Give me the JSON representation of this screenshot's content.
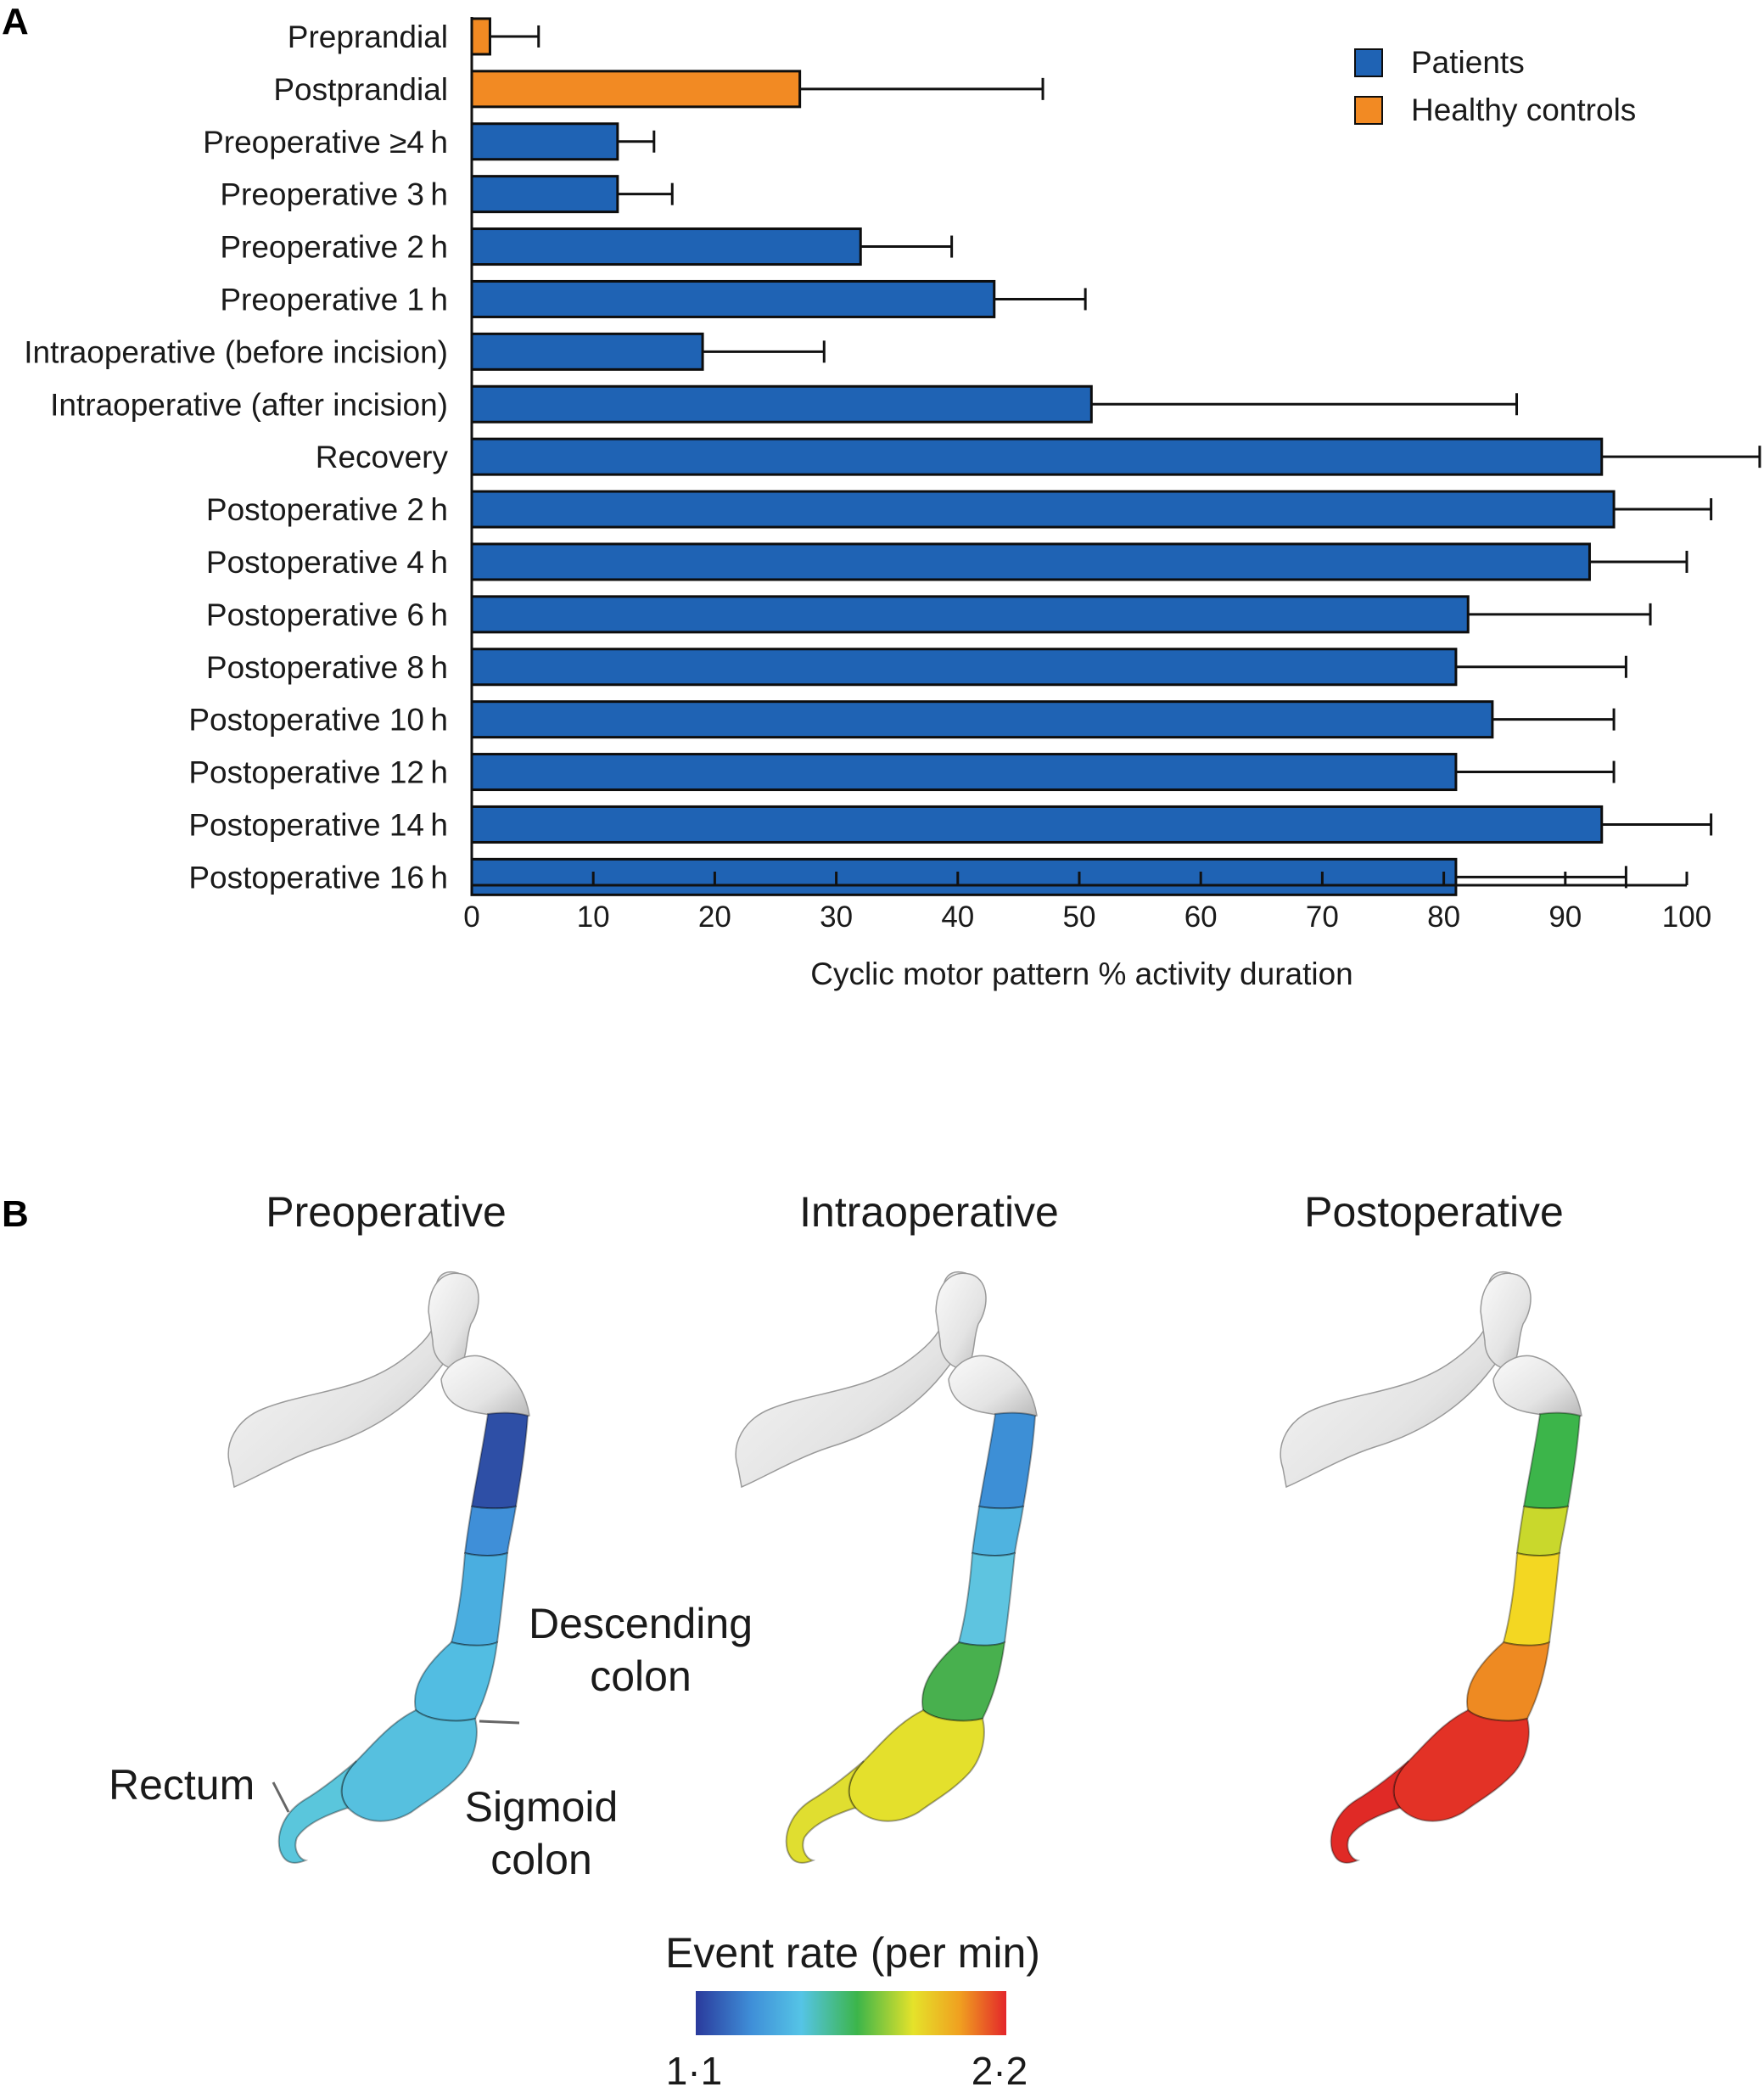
{
  "colors": {
    "patients": "#1f63b4",
    "healthy": "#f28a23",
    "bar_edge": "#0d0d0d",
    "colorbar": [
      "#2a3a9c",
      "#3f8fd8",
      "#55c4e6",
      "#3cb54a",
      "#e5e22a",
      "#f0a020",
      "#e3262a"
    ],
    "colon_base": "#e6e6e6"
  },
  "panel_a": {
    "letter": "A",
    "chart_data": {
      "type": "bar",
      "orientation": "horizontal",
      "xlabel": "Cyclic motor pattern % activity duration",
      "xlim": [
        0,
        100
      ],
      "xticks": [
        "0",
        "10",
        "20",
        "30",
        "40",
        "50",
        "60",
        "70",
        "80",
        "90",
        "100"
      ],
      "legend_position": "top-right",
      "legend": [
        {
          "label": "Patients",
          "group": "patients"
        },
        {
          "label": "Healthy controls",
          "group": "healthy"
        }
      ],
      "categories": [
        "Preprandial",
        "Postprandial",
        "Preoperative ≥4 h",
        "Preoperative 3 h",
        "Preoperative 2 h",
        "Preoperative 1 h",
        "Intraoperative (before incision)",
        "Intraoperative (after incision)",
        "Recovery",
        "Postoperative 2 h",
        "Postoperative 4 h",
        "Postoperative 6 h",
        "Postoperative 8 h",
        "Postoperative 10 h",
        "Postoperative 12 h",
        "Postoperative 14 h",
        "Postoperative 16 h"
      ],
      "groups": [
        "healthy",
        "healthy",
        "patients",
        "patients",
        "patients",
        "patients",
        "patients",
        "patients",
        "patients",
        "patients",
        "patients",
        "patients",
        "patients",
        "patients",
        "patients",
        "patients",
        "patients"
      ],
      "values": [
        1.5,
        27,
        12,
        12,
        32,
        43,
        19,
        51,
        93,
        94,
        92,
        82,
        81,
        84,
        81,
        93,
        81
      ],
      "error_upper": [
        5.5,
        47,
        15,
        16.5,
        39.5,
        50.5,
        29,
        86,
        106,
        102,
        100,
        97,
        95,
        94,
        94,
        102,
        95
      ]
    }
  },
  "panel_b": {
    "letter": "B",
    "titles": [
      "Preoperative",
      "Intraoperative",
      "Postoperative"
    ],
    "annotations": {
      "descending_line1": "Descending",
      "descending_line2": "colon",
      "rectum": "Rectum",
      "sigmoid_line1": "Sigmoid",
      "sigmoid_line2": "colon"
    },
    "colorbar": {
      "title": "Event rate (per min)",
      "min_label": "1·1",
      "max_label": "2·2",
      "min": 1.1,
      "max": 2.2
    },
    "segment_colors": {
      "pre": [
        "#2e4fa6",
        "#3f8fd8",
        "#4aaee0",
        "#52bde2",
        "#56c0df",
        "#5ac6dc"
      ],
      "intra": [
        "#3d8fd6",
        "#4fb3e0",
        "#5ec4e0",
        "#48b04e",
        "#e4e02c",
        "#e0de30"
      ],
      "post": [
        "#3cb54a",
        "#c9d82c",
        "#f3d722",
        "#ee8a22",
        "#e33226",
        "#e02a26"
      ]
    }
  }
}
